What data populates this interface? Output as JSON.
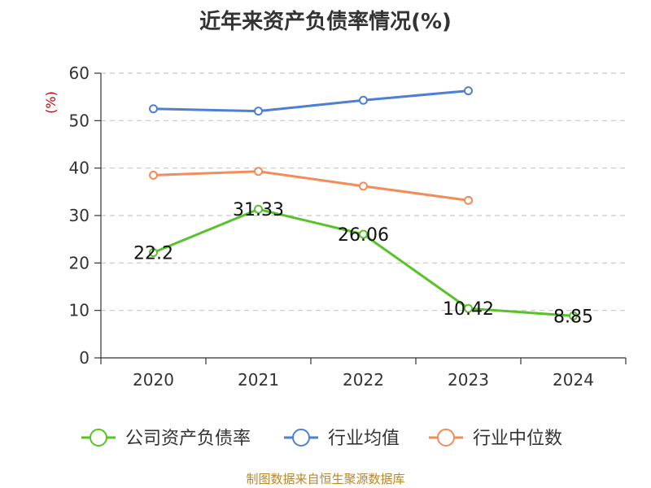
{
  "chart_data": {
    "type": "line",
    "title": "近年来资产负债率情况(%)",
    "ylabel": "(%)",
    "xlabel": "",
    "categories": [
      "2020",
      "2021",
      "2022",
      "2023",
      "2024"
    ],
    "ylim": [
      0,
      60
    ],
    "yticks": [
      0,
      10,
      20,
      30,
      40,
      50,
      60
    ],
    "grid": true,
    "legend_position": "bottom",
    "series": [
      {
        "name": "公司资产负债率",
        "color": "#5ac229",
        "values": [
          22.2,
          31.33,
          26.06,
          10.42,
          8.85
        ],
        "labels": [
          "22.2",
          "31.33",
          "26.06",
          "10.42",
          "8.85"
        ]
      },
      {
        "name": "行业均值",
        "color": "#4e7fd6",
        "values": [
          52.5,
          52.0,
          54.3,
          56.3,
          null
        ]
      },
      {
        "name": "行业中位数",
        "color": "#f48c5a",
        "values": [
          38.5,
          39.3,
          36.2,
          33.2,
          null
        ]
      }
    ]
  },
  "source": "制图数据来自恒生聚源数据库"
}
